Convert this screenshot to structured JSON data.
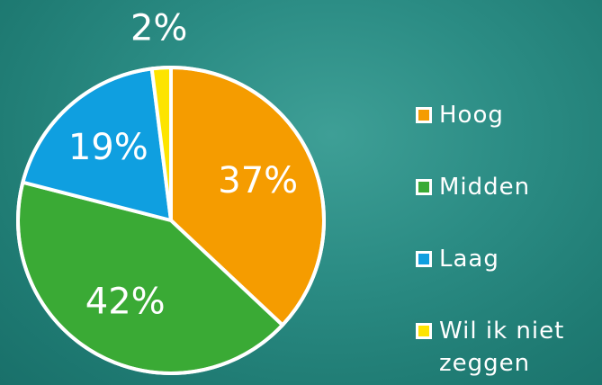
{
  "chart_data": {
    "type": "pie",
    "categories": [
      "Hoog",
      "Midden",
      "Laag",
      "Wil ik niet zeggen"
    ],
    "values": [
      37,
      42,
      19,
      2
    ],
    "value_labels": [
      "37%",
      "42%",
      "19%",
      "2%"
    ],
    "colors": [
      "#f59c00",
      "#3aaa35",
      "#0f9fe0",
      "#fde400"
    ],
    "legend": "right"
  }
}
